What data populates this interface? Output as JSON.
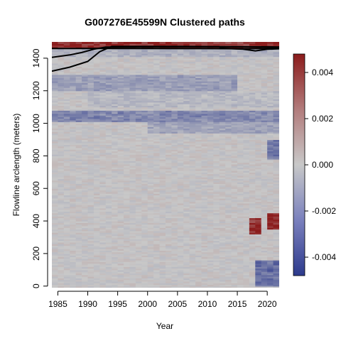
{
  "chart_data": {
    "type": "heatmap",
    "title": "G007276E45599N Clustered paths",
    "xlabel": "Year",
    "ylabel": "Flowline arclength (meters)",
    "xlim": [
      1984,
      2022
    ],
    "ylim": [
      -10,
      1500
    ],
    "x_ticks": [
      1985,
      1990,
      1995,
      2000,
      2005,
      2010,
      2015,
      2020
    ],
    "y_ticks": [
      0,
      200,
      400,
      600,
      800,
      1000,
      1200,
      1400
    ],
    "colorbar": {
      "range": [
        -0.0048,
        0.0048
      ],
      "ticks": [
        {
          "value": 0.004,
          "label": "0.004"
        },
        {
          "value": 0.002,
          "label": "0.002"
        },
        {
          "value": 0.0,
          "label": "0.000"
        },
        {
          "value": -0.002,
          "label": "-0.002"
        },
        {
          "value": -0.004,
          "label": "-0.004"
        }
      ],
      "colors": {
        "low": "#2d3a8c",
        "mid": "#c8c8c8",
        "high": "#8b1c1c"
      }
    },
    "features": [
      {
        "year_range": [
          1984,
          2022
        ],
        "arclength_range": [
          1010,
          1080
        ],
        "value": -0.0022
      },
      {
        "year_range": [
          2000,
          2022
        ],
        "arclength_range": [
          940,
          1010
        ],
        "value": -0.0012
      },
      {
        "year_range": [
          1984,
          2015
        ],
        "arclength_range": [
          1200,
          1300
        ],
        "value": -0.0014
      },
      {
        "year_range": [
          1984,
          2022
        ],
        "arclength_range": [
          1460,
          1500
        ],
        "value": 0.0042
      },
      {
        "year_range": [
          1984,
          2022
        ],
        "arclength_range": [
          1410,
          1460
        ],
        "value": -0.0008
      },
      {
        "year_range": [
          2017,
          2019
        ],
        "arclength_range": [
          320,
          420
        ],
        "value": 0.0045
      },
      {
        "year_range": [
          2020,
          2022
        ],
        "arclength_range": [
          350,
          450
        ],
        "value": 0.0048
      },
      {
        "year_range": [
          2018,
          2022
        ],
        "arclength_range": [
          0,
          160
        ],
        "value": -0.003
      },
      {
        "year_range": [
          2020,
          2022
        ],
        "arclength_range": [
          780,
          900
        ],
        "value": -0.0028
      },
      {
        "year_range": [
          1990,
          2022
        ],
        "arclength_range": [
          1100,
          1200
        ],
        "value": -0.0005
      }
    ],
    "paths": [
      {
        "x": [
          1984,
          1987,
          1989,
          1991,
          1993,
          2000,
          2010,
          2020,
          2022
        ],
        "y": [
          1405,
          1420,
          1435,
          1455,
          1468,
          1470,
          1470,
          1470,
          1468
        ]
      },
      {
        "x": [
          1984,
          1987,
          1990,
          1992,
          1994,
          2005,
          2015,
          2022
        ],
        "y": [
          1320,
          1345,
          1380,
          1440,
          1472,
          1472,
          1470,
          1468
        ]
      },
      {
        "x": [
          1984,
          1990,
          2000,
          2005,
          2010,
          2015,
          2020,
          2022
        ],
        "y": [
          1460,
          1460,
          1460,
          1459,
          1459,
          1458,
          1460,
          1460
        ]
      },
      {
        "x": [
          2012,
          2016,
          2018,
          2020,
          2022
        ],
        "y": [
          1462,
          1455,
          1445,
          1455,
          1458
        ]
      }
    ]
  }
}
